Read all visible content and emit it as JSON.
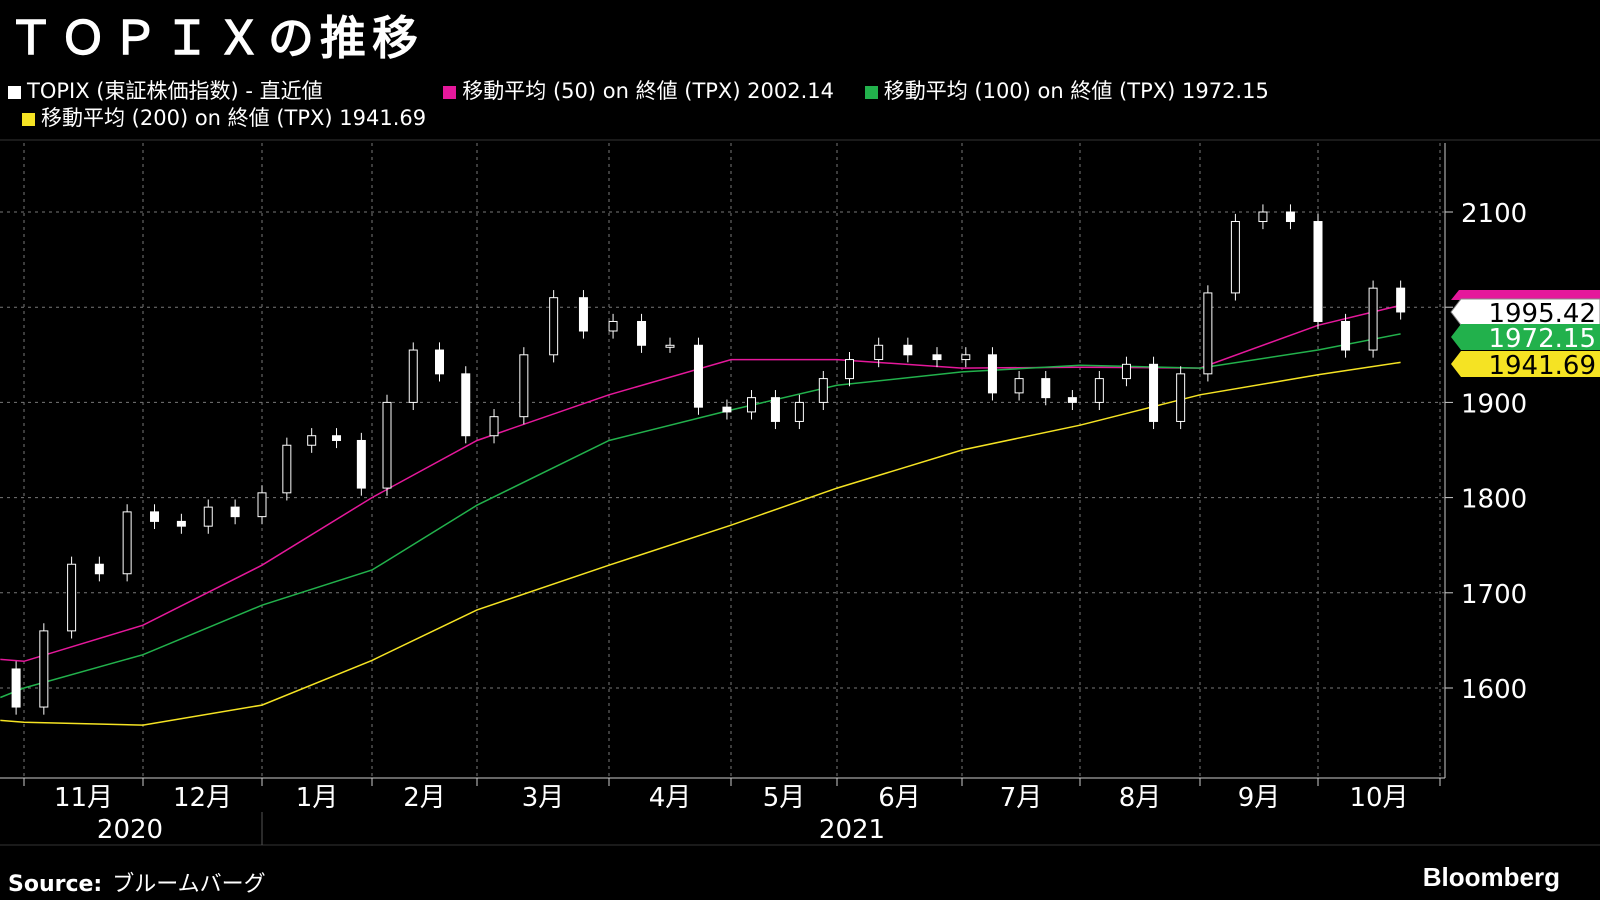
{
  "title": "ＴＯＰＩＸの推移",
  "legend": [
    {
      "label": "TOPIX (東証株価指数) - 直近値",
      "color": "#ffffff"
    },
    {
      "label": "移動平均 (50) on 終値 (TPX) 2002.14",
      "color": "#e5189b"
    },
    {
      "label": "移動平均 (100) on 終値 (TPX) 1972.15",
      "color": "#22b14c"
    },
    {
      "label": "移動平均 (200) on 終値 (TPX) 1941.69",
      "color": "#f5e323"
    }
  ],
  "source_label": "Source:",
  "source_value": "ブルームバーグ",
  "brand": "Bloomberg",
  "chart_data": {
    "type": "candlestick",
    "ylim": [
      1530,
      2170
    ],
    "yticks": [
      1600,
      1700,
      1800,
      1900,
      2000,
      2100
    ],
    "ytick_labels": [
      "1600",
      "1700",
      "1800",
      "1900",
      "",
      "2100"
    ],
    "grid": true,
    "month_labels": [
      "11月",
      "12月",
      "1月",
      "2月",
      "3月",
      "4月",
      "5月",
      "6月",
      "7月",
      "8月",
      "9月",
      "10月"
    ],
    "month_starts": [
      "2020-11-01",
      "2020-12-01",
      "2021-01-01",
      "2021-02-01",
      "2021-03-01",
      "2021-04-01",
      "2021-05-01",
      "2021-06-01",
      "2021-07-01",
      "2021-08-01",
      "2021-09-01",
      "2021-10-01",
      "2021-11-01"
    ],
    "year_labels": [
      "2020",
      "2021"
    ],
    "last_value_labels": [
      {
        "value": "1995.42",
        "color": "#ffffff"
      },
      {
        "value": "1972.15",
        "color": "#22b14c"
      },
      {
        "value": "1941.69",
        "color": "#f5e323"
      }
    ],
    "topix_weekly": {
      "dates": [
        "2020-10-30",
        "2020-11-06",
        "2020-11-13",
        "2020-11-20",
        "2020-11-27",
        "2020-12-04",
        "2020-12-11",
        "2020-12-18",
        "2020-12-25",
        "2021-01-01",
        "2021-01-08",
        "2021-01-15",
        "2021-01-22",
        "2021-01-29",
        "2021-02-05",
        "2021-02-12",
        "2021-02-19",
        "2021-02-26",
        "2021-03-05",
        "2021-03-12",
        "2021-03-19",
        "2021-03-26",
        "2021-04-02",
        "2021-04-09",
        "2021-04-16",
        "2021-04-23",
        "2021-04-30",
        "2021-05-07",
        "2021-05-14",
        "2021-05-21",
        "2021-05-28",
        "2021-06-04",
        "2021-06-11",
        "2021-06-18",
        "2021-06-25",
        "2021-07-02",
        "2021-07-09",
        "2021-07-16",
        "2021-07-23",
        "2021-07-30",
        "2021-08-06",
        "2021-08-13",
        "2021-08-20",
        "2021-08-27",
        "2021-09-03",
        "2021-09-10",
        "2021-09-17",
        "2021-09-24",
        "2021-10-01",
        "2021-10-08",
        "2021-10-15",
        "2021-10-22"
      ],
      "close": [
        1580,
        1660,
        1730,
        1720,
        1785,
        1775,
        1770,
        1790,
        1780,
        1805,
        1855,
        1865,
        1860,
        1810,
        1900,
        1955,
        1930,
        1865,
        1885,
        1950,
        2010,
        1975,
        1985,
        1960,
        1960,
        1895,
        1890,
        1905,
        1880,
        1900,
        1925,
        1945,
        1960,
        1950,
        1945,
        1950,
        1910,
        1925,
        1905,
        1900,
        1925,
        1940,
        1880,
        1930,
        2015,
        2090,
        2100,
        2090,
        1985,
        1955,
        2020,
        1995
      ]
    },
    "series": [
      {
        "name": "移動平均 (50)",
        "color": "#e5189b",
        "dates": [
          "2020-10-26",
          "2020-11-01",
          "2020-12-01",
          "2021-01-01",
          "2021-02-01",
          "2021-03-01",
          "2021-04-01",
          "2021-05-01",
          "2021-06-01",
          "2021-07-01",
          "2021-08-01",
          "2021-09-01",
          "2021-10-01",
          "2021-10-22"
        ],
        "values": [
          1630,
          1628,
          1666,
          1729,
          1800,
          1860,
          1908,
          1945,
          1945,
          1936,
          1937,
          1936,
          1981,
          2002
        ]
      },
      {
        "name": "移動平均 (100)",
        "color": "#22b14c",
        "dates": [
          "2020-10-26",
          "2020-11-01",
          "2020-12-01",
          "2021-01-01",
          "2021-02-01",
          "2021-03-01",
          "2021-04-01",
          "2021-05-01",
          "2021-06-01",
          "2021-07-01",
          "2021-08-01",
          "2021-09-01",
          "2021-10-01",
          "2021-10-22"
        ],
        "values": [
          1590,
          1600,
          1635,
          1687,
          1724,
          1792,
          1860,
          1892,
          1918,
          1932,
          1939,
          1936,
          1955,
          1972
        ]
      },
      {
        "name": "移動平均 (200)",
        "color": "#f5e323",
        "dates": [
          "2020-10-26",
          "2020-11-01",
          "2020-12-01",
          "2021-01-01",
          "2021-02-01",
          "2021-03-01",
          "2021-04-01",
          "2021-05-01",
          "2021-06-01",
          "2021-07-01",
          "2021-08-01",
          "2021-09-01",
          "2021-10-01",
          "2021-10-22"
        ],
        "values": [
          1566,
          1564,
          1561,
          1582,
          1629,
          1682,
          1729,
          1771,
          1810,
          1850,
          1876,
          1908,
          1929,
          1942
        ]
      }
    ]
  }
}
